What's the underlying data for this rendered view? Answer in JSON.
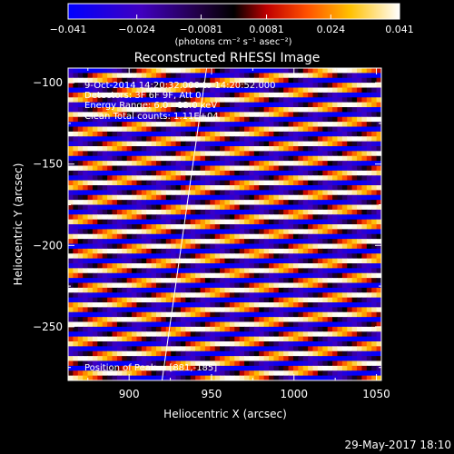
{
  "chart_data": {
    "type": "heatmap",
    "title": "Reconstructed RHESSI Image",
    "xlabel": "Heliocentric X (arcsec)",
    "ylabel": "Heliocentric Y (arcsec)",
    "xlim": [
      863,
      1053
    ],
    "ylim": [
      -283,
      -91
    ],
    "x_ticks": [
      900,
      950,
      1000,
      1050
    ],
    "y_ticks": [
      -100,
      -150,
      -200,
      -250
    ],
    "colorbar": {
      "min": -0.041,
      "max": 0.041,
      "ticks": [
        "-0.041",
        "-0.024",
        "-0.0081",
        "0.0081",
        "0.024",
        "0.041"
      ],
      "unit_label": "(photons cm⁻² s⁻¹ asec⁻²)",
      "colormap": "blue-purple-black-red-orange-yellow-white"
    },
    "annotations": [
      "9-Oct-2014 14:20:32.000 to 14:20:52.000",
      "Detectors: 3F 6F 9F, Att 0",
      "Energy Range: 6.0 - 12.0 keV",
      "Clean    Total counts: 1.11E+04"
    ],
    "peak_label": "Position of Peak = [881,-185]",
    "stripe_pattern": {
      "description": "diagonal fringe pattern tilted upward to the right",
      "fringe_period_arcsec": 10.7,
      "slope_dy_per_dx": 0.105
    },
    "limb_line": {
      "x": [
        920,
        947
      ],
      "y": [
        -283,
        -91
      ]
    }
  },
  "footer": {
    "date": "29-May-2017 18:10"
  }
}
